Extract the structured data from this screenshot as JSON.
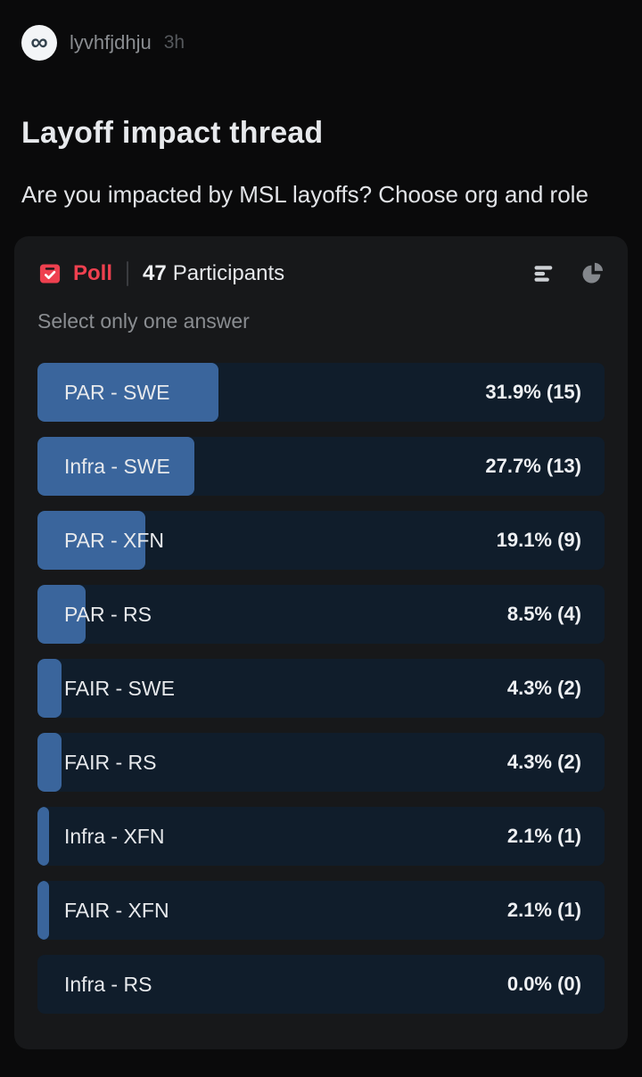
{
  "post": {
    "author": "lyvhfjdhju",
    "timestamp": "3h",
    "title": "Layoff impact thread",
    "body": "Are you impacted by MSL layoffs? Choose org and role"
  },
  "poll": {
    "label": "Poll",
    "participants_count": "47",
    "participants_label": "Participants",
    "instruction": "Select only one answer",
    "options": [
      {
        "label": "PAR - SWE",
        "percent": 31.9,
        "votes": 15,
        "result": "31.9% (15)"
      },
      {
        "label": "Infra - SWE",
        "percent": 27.7,
        "votes": 13,
        "result": "27.7% (13)"
      },
      {
        "label": "PAR - XFN",
        "percent": 19.1,
        "votes": 9,
        "result": "19.1% (9)"
      },
      {
        "label": "PAR - RS",
        "percent": 8.5,
        "votes": 4,
        "result": "8.5% (4)"
      },
      {
        "label": "FAIR - SWE",
        "percent": 4.3,
        "votes": 2,
        "result": "4.3% (2)"
      },
      {
        "label": "FAIR - RS",
        "percent": 4.3,
        "votes": 2,
        "result": "4.3% (2)"
      },
      {
        "label": "Infra - XFN",
        "percent": 2.1,
        "votes": 1,
        "result": "2.1% (1)"
      },
      {
        "label": "FAIR - XFN",
        "percent": 2.1,
        "votes": 1,
        "result": "2.1% (1)"
      },
      {
        "label": "Infra - RS",
        "percent": 0.0,
        "votes": 0,
        "result": "0.0% (0)"
      }
    ]
  },
  "icons": {
    "meta_logo_glyph": "∞"
  },
  "colors": {
    "page-bg": "#0a0a0b",
    "card-bg": "#17181a",
    "option-bg": "#101d2b",
    "fill-blue": "#3a659c",
    "poll-accent": "#ee404f",
    "text-primary": "#e7e9ec",
    "text-secondary": "#8a8d91",
    "timestamp": "#55585c"
  }
}
